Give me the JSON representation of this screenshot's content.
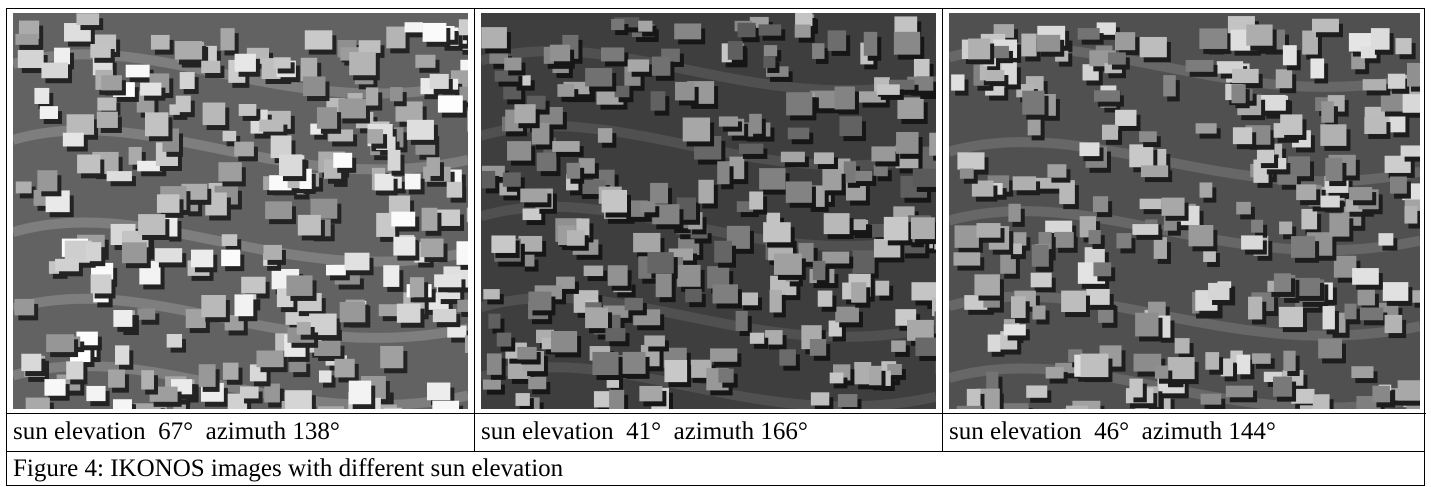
{
  "figure": {
    "panels": [
      {
        "caption": "sun elevation  67°  azimuth 138°"
      },
      {
        "caption": "sun elevation  41°  azimuth 166°"
      },
      {
        "caption": "sun elevation  46°  azimuth 144°"
      }
    ],
    "caption": "Figure 4: IKONOS images with different sun elevation"
  }
}
